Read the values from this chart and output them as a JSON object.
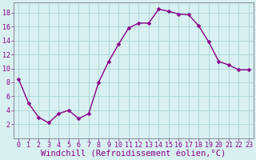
{
  "x": [
    0,
    1,
    2,
    3,
    4,
    5,
    6,
    7,
    8,
    9,
    10,
    11,
    12,
    13,
    14,
    15,
    16,
    17,
    18,
    19,
    20,
    21,
    22,
    23
  ],
  "y": [
    8.5,
    5.0,
    3.0,
    2.2,
    3.5,
    4.0,
    2.8,
    3.5,
    8.0,
    11.0,
    13.5,
    15.8,
    16.5,
    16.5,
    18.5,
    18.2,
    17.8,
    17.7,
    16.1,
    13.8,
    11.0,
    10.5,
    9.8,
    9.8
  ],
  "line_color": "#880088",
  "marker": "D",
  "marker_size": 2.5,
  "background_color": "#d8f0f0",
  "grid_color": "#b0d8d8",
  "xlabel": "Windchill (Refroidissement éolien,°C)",
  "xlabel_fontsize": 7.5,
  "xlim": [
    -0.5,
    23.5
  ],
  "ylim": [
    0,
    19.5
  ],
  "yticks": [
    2,
    4,
    6,
    8,
    10,
    12,
    14,
    16,
    18
  ],
  "ytick_labels": [
    "2",
    "4",
    "6",
    "8",
    "10",
    "12",
    "14",
    "16",
    "18"
  ],
  "xticks": [
    0,
    1,
    2,
    3,
    4,
    5,
    6,
    7,
    8,
    9,
    10,
    11,
    12,
    13,
    14,
    15,
    16,
    17,
    18,
    19,
    20,
    21,
    22,
    23
  ],
  "xtick_labels": [
    "0",
    "1",
    "2",
    "3",
    "4",
    "5",
    "6",
    "7",
    "8",
    "9",
    "10",
    "11",
    "12",
    "13",
    "14",
    "15",
    "16",
    "17",
    "18",
    "19",
    "20",
    "21",
    "22",
    "23"
  ],
  "tick_fontsize": 6,
  "line_width": 1.0,
  "spine_color": "#888899"
}
